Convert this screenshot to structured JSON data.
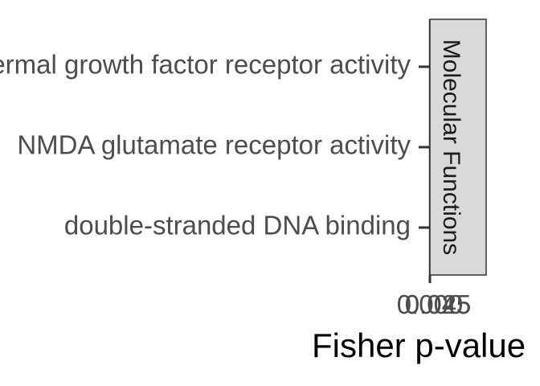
{
  "chart_data": {
    "type": "bar",
    "categories": [
      "epidermal growth factor receptor activity",
      "NMDA glutamate receptor activity",
      "double-stranded DNA binding"
    ],
    "values": [
      null,
      null,
      null
    ],
    "facet_label": "Molecular Functions",
    "xlabel": "Fisher p-value",
    "x_tick_labels": [
      "0.000",
      "0.025",
      "0.045"
    ],
    "grid": false,
    "legend": "none",
    "colors": {
      "axis": "#333333",
      "label": "#4d4d4d",
      "strip_fill": "#d9d9d9",
      "strip_border": "#333333"
    }
  }
}
